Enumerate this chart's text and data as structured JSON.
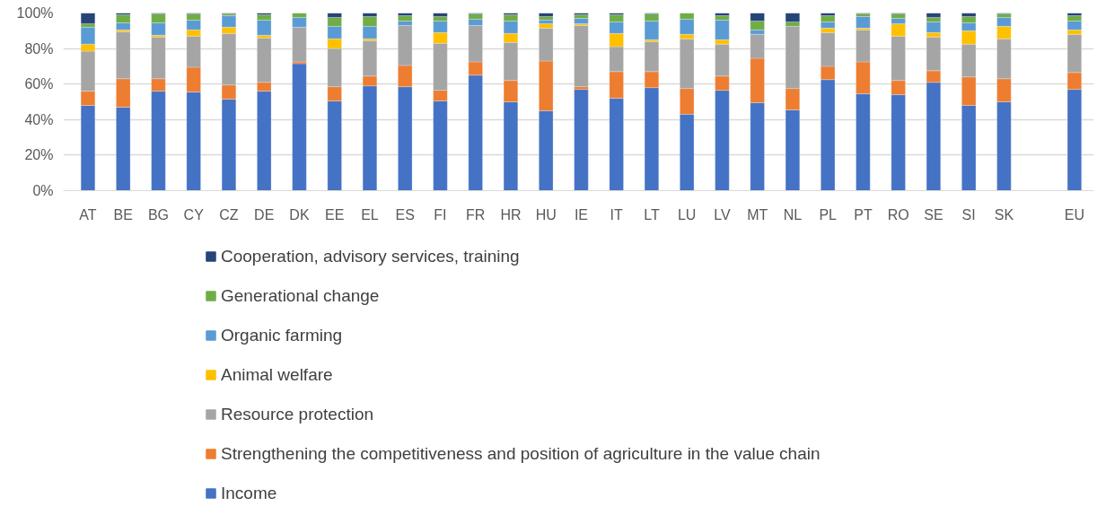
{
  "chart_data": {
    "type": "bar",
    "stacked": true,
    "grid": "y",
    "legend": "bottom",
    "categories": [
      "AT",
      "BE",
      "BG",
      "CY",
      "CZ",
      "DE",
      "DK",
      "EE",
      "EL",
      "ES",
      "FI",
      "FR",
      "HR",
      "HU",
      "IE",
      "IT",
      "LT",
      "LU",
      "LV",
      "MT",
      "NL",
      "PL",
      "PT",
      "RO",
      "SE",
      "SI",
      "SK",
      null,
      "EU"
    ],
    "ylim": [
      0,
      100
    ],
    "yticks": [
      {
        "value": 0,
        "label": "0%"
      },
      {
        "value": 20,
        "label": "20%"
      },
      {
        "value": 40,
        "label": "40%"
      },
      {
        "value": 60,
        "label": "60%"
      },
      {
        "value": 80,
        "label": "80%"
      },
      {
        "value": 100,
        "label": "100%"
      }
    ],
    "series": [
      {
        "name": "Income",
        "color": "#4472c4",
        "values": [
          48,
          47,
          56,
          55.5,
          51.5,
          56,
          71.5,
          50.5,
          59,
          58.5,
          50.5,
          65,
          50,
          45,
          57,
          52,
          58,
          43,
          56.5,
          49.5,
          45.5,
          62.5,
          54.5,
          54,
          61,
          48,
          50,
          null,
          57
        ]
      },
      {
        "name": "Strengthening the competitiveness and position of agriculture in the value chain",
        "color": "#ed7d31",
        "values": [
          8,
          16,
          7,
          14,
          8,
          5,
          1,
          8,
          5.5,
          12,
          6,
          7.5,
          12,
          28,
          1.5,
          15,
          9,
          14.5,
          8,
          25,
          12,
          7.5,
          18,
          8,
          6.5,
          16,
          13,
          null,
          9.5
        ]
      },
      {
        "name": "Resource protection",
        "color": "#a5a5a5",
        "values": [
          22.5,
          26.5,
          23.5,
          17.5,
          29,
          25,
          19.5,
          21.5,
          20,
          22.5,
          26.5,
          20.5,
          21.5,
          18.5,
          34.5,
          14,
          17,
          28,
          18,
          13.5,
          35,
          19,
          18,
          25,
          19,
          18.5,
          22.5,
          null,
          21.5
        ]
      },
      {
        "name": "Animal welfare",
        "color": "#ffc000",
        "values": [
          4,
          1,
          1,
          3.5,
          3.5,
          1.5,
          0,
          5.5,
          1,
          0,
          6,
          0,
          5,
          2.5,
          1,
          7.5,
          1,
          2.5,
          2.5,
          0,
          0,
          2.5,
          1,
          7,
          2.5,
          7.5,
          7,
          null,
          2.5
        ]
      },
      {
        "name": "Organic farming",
        "color": "#5b9bd5",
        "values": [
          9.5,
          4,
          7,
          5.5,
          6.5,
          8.5,
          5.5,
          7,
          7,
          2.5,
          6.5,
          3.5,
          7,
          2,
          3,
          6.5,
          10.5,
          8.5,
          11,
          2.5,
          0,
          3.5,
          6.5,
          3,
          6,
          4.5,
          5,
          null,
          5
        ]
      },
      {
        "name": "Generational change",
        "color": "#70ad47",
        "values": [
          2,
          4.5,
          5,
          3.5,
          1,
          3,
          2.5,
          5,
          5.5,
          3,
          2.5,
          3,
          3.5,
          2,
          2,
          4,
          4,
          3.5,
          2.5,
          5,
          2.5,
          3.5,
          1.5,
          2.5,
          2.5,
          3.5,
          2,
          null,
          3
        ]
      },
      {
        "name": "Cooperation, advisory services, training",
        "color": "#264478",
        "values": [
          6,
          1,
          0.5,
          0.5,
          0.5,
          1,
          0,
          2.5,
          2,
          1.5,
          2,
          0.5,
          1,
          2,
          1,
          1,
          0.5,
          0,
          1.5,
          4.5,
          5,
          1.5,
          0.5,
          0.5,
          2.5,
          2,
          0.5,
          null,
          1.5
        ]
      }
    ]
  }
}
